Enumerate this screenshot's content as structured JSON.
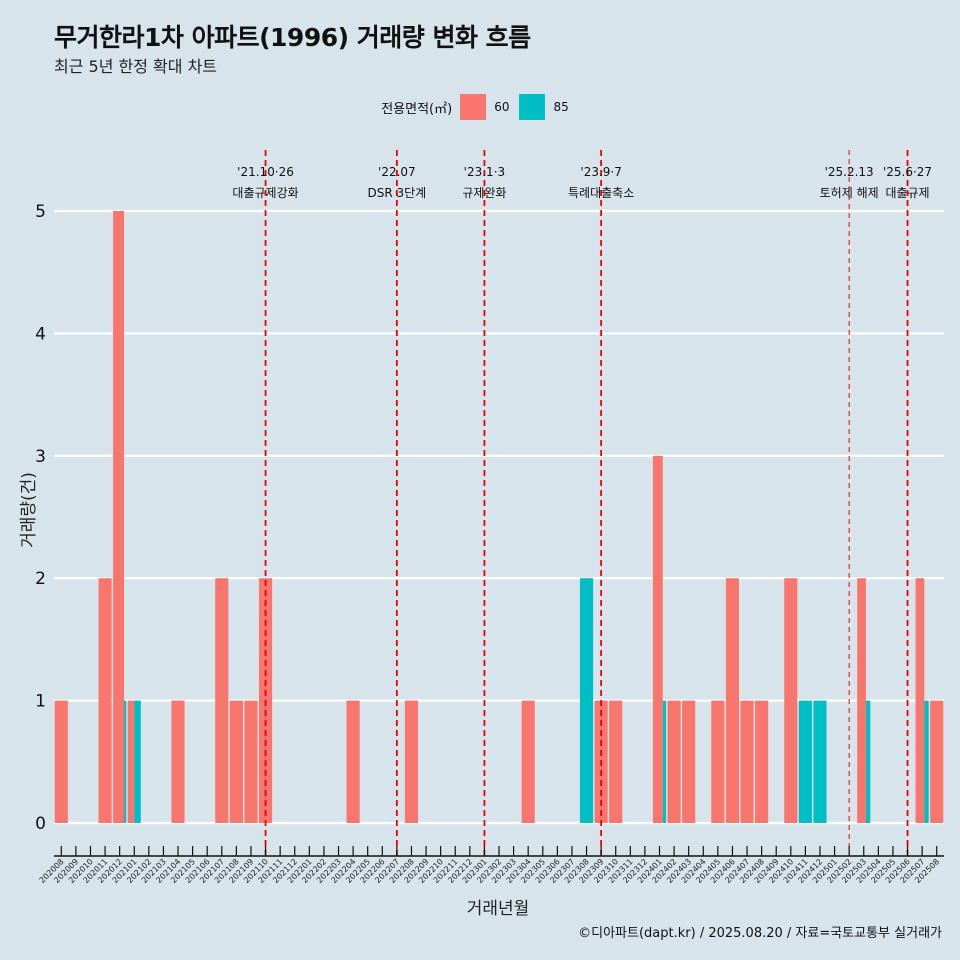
{
  "title": "무거한라1차 아파트(1996) 거래량 변화 흐름",
  "subtitle": "최근 5년 한정 확대 차트",
  "caption": "©디아파트(dapt.kr) / 2025.08.20 / 자료=국토교통부 실거래가",
  "legend": {
    "title": "전용면적(㎡)",
    "items": [
      {
        "label": "60",
        "color": "#F8766D"
      },
      {
        "label": "85",
        "color": "#00BFC4"
      }
    ]
  },
  "chart_data": {
    "type": "bar",
    "xlabel": "거래년월",
    "ylabel": "거래량(건)",
    "ylim": [
      0,
      5
    ],
    "yticks": [
      0,
      1,
      2,
      3,
      4,
      5
    ],
    "categories": [
      "202008",
      "202009",
      "202010",
      "202011",
      "202012",
      "202101",
      "202102",
      "202103",
      "202104",
      "202105",
      "202106",
      "202107",
      "202108",
      "202109",
      "202110",
      "202111",
      "202112",
      "202201",
      "202202",
      "202203",
      "202204",
      "202205",
      "202206",
      "202207",
      "202208",
      "202209",
      "202210",
      "202211",
      "202212",
      "202301",
      "202302",
      "202303",
      "202304",
      "202305",
      "202306",
      "202307",
      "202308",
      "202309",
      "202310",
      "202311",
      "202312",
      "202401",
      "202402",
      "202403",
      "202404",
      "202405",
      "202406",
      "202407",
      "202408",
      "202409",
      "202410",
      "202411",
      "202412",
      "202501",
      "202502",
      "202503",
      "202504",
      "202505",
      "202506",
      "202507",
      "202508"
    ],
    "series": [
      {
        "name": "60",
        "color": "#F8766D",
        "values": [
          1,
          0,
          0,
          2,
          5,
          1,
          0,
          0,
          1,
          0,
          0,
          2,
          1,
          1,
          2,
          0,
          0,
          0,
          0,
          0,
          1,
          0,
          0,
          0,
          1,
          0,
          0,
          0,
          0,
          0,
          0,
          0,
          1,
          0,
          0,
          0,
          0,
          1,
          1,
          0,
          0,
          3,
          1,
          1,
          0,
          1,
          2,
          1,
          1,
          0,
          2,
          0,
          0,
          0,
          0,
          2,
          0,
          0,
          0,
          2,
          1
        ]
      },
      {
        "name": "85",
        "color": "#00BFC4",
        "values": [
          0,
          0,
          0,
          0,
          1,
          1,
          0,
          0,
          0,
          0,
          0,
          0,
          0,
          0,
          0,
          0,
          0,
          0,
          0,
          0,
          0,
          0,
          0,
          0,
          0,
          0,
          0,
          0,
          0,
          0,
          0,
          0,
          0,
          0,
          0,
          0,
          2,
          0,
          0,
          0,
          0,
          1,
          0,
          0,
          0,
          0,
          0,
          0,
          0,
          0,
          0,
          1,
          1,
          0,
          0,
          1,
          0,
          0,
          0,
          1,
          0
        ]
      }
    ],
    "annotations": [
      {
        "month": "202110",
        "pos": 0.5,
        "line1": "'21.10·26",
        "line2": "대출규제강화",
        "style": "thick"
      },
      {
        "month": "202207",
        "pos": 0.5,
        "line1": "'22.07",
        "line2": "DSR 3단계",
        "style": "thick"
      },
      {
        "month": "202301",
        "pos": 0.5,
        "line1": "'23.1·3",
        "line2": "규제완화",
        "style": "thick"
      },
      {
        "month": "202309",
        "pos": 0.5,
        "line1": "'23.9·7",
        "line2": "특례대출축소",
        "style": "thick"
      },
      {
        "month": "202502",
        "pos": 0.5,
        "line1": "'25.2.13",
        "line2": "토허제 해제",
        "style": "thin"
      },
      {
        "month": "202506",
        "pos": 0.5,
        "line1": "'25.6·27",
        "line2": "대출규제",
        "style": "thick"
      }
    ]
  }
}
